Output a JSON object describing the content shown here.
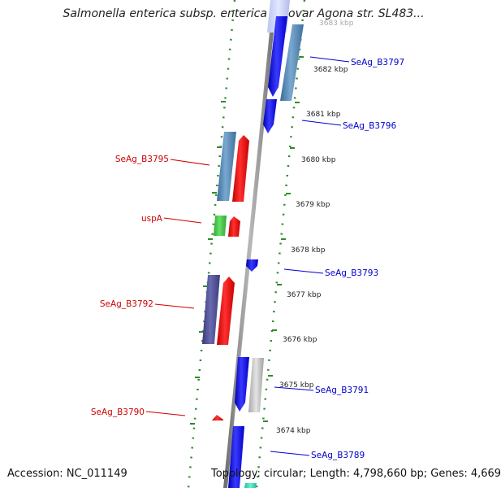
{
  "title": "Salmonella enterica subsp. enterica serovar Agona str. SL483...",
  "footer": {
    "accession": "Accession: NC_011149",
    "topology": "Topology: circular; Length: 4,798,660 bp; Genes: 4,669"
  },
  "colors": {
    "backbone": "#808080",
    "strand_dots": "#2e8b2e",
    "label_forward": "#cc0000",
    "label_reverse": "#0000cc"
  },
  "kbp_ticks": [
    "3683 kbp",
    "3682 kbp",
    "3681 kbp",
    "3680 kbp",
    "3679 kbp",
    "3678 kbp",
    "3677 kbp",
    "3676 kbp",
    "3675 kbp",
    "3674 kbp"
  ],
  "gene_labels": [
    {
      "name": "SeAg_B3797",
      "strand": "reverse"
    },
    {
      "name": "SeAg_B3796",
      "strand": "reverse"
    },
    {
      "name": "SeAg_B3795",
      "strand": "forward"
    },
    {
      "name": "uspA",
      "strand": "forward"
    },
    {
      "name": "SeAg_B3793",
      "strand": "reverse"
    },
    {
      "name": "SeAg_B3792",
      "strand": "forward"
    },
    {
      "name": "SeAg_B3791",
      "strand": "reverse"
    },
    {
      "name": "SeAg_B3790",
      "strand": "forward"
    },
    {
      "name": "SeAg_B3789",
      "strand": "reverse"
    }
  ]
}
